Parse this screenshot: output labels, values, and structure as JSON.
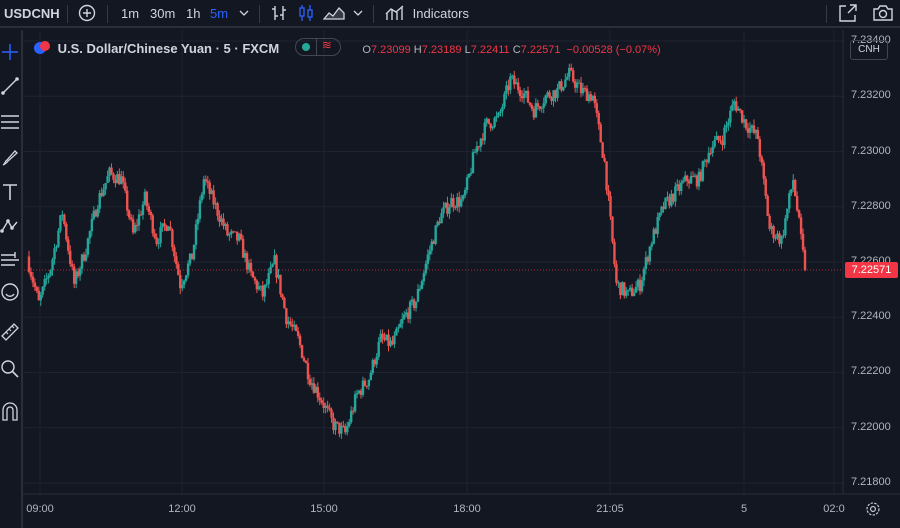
{
  "toolbar": {
    "symbol": "USDCNH",
    "intervals": [
      "1m",
      "30m",
      "1h",
      "5m"
    ],
    "indicators_label": "Indicators"
  },
  "legend": {
    "title": "U.S. Dollar/Chinese Yuan · 5 · FXCM",
    "open_label": "O",
    "open": "7.23099",
    "high_label": "H",
    "high": "7.23189",
    "low_label": "L",
    "low": "7.22411",
    "close_label": "C",
    "close": "7.22571",
    "change": "−0.00528 (−0.07%)"
  },
  "currency": "CNH",
  "last_price": "7.22571",
  "colors": {
    "up": "#26a69a",
    "down": "#ef5350",
    "background": "#131722",
    "accent": "#2962ff"
  },
  "icons": [
    "plus-circle-icon",
    "chevron-down-icon",
    "candles-icon",
    "hollow-candles-icon",
    "area-chart-icon",
    "indicators-icon",
    "fullscreen-icon",
    "camera-icon",
    "crosshair-icon",
    "trendline-icon",
    "fib-icon",
    "brush-icon",
    "text-icon",
    "pattern-icon",
    "prediction-icon",
    "emoji-icon",
    "ruler-icon",
    "zoom-icon",
    "magnet-icon",
    "settings-icon"
  ],
  "chart_data": {
    "type": "candlestick",
    "ylim": [
      7.2176,
      7.2344
    ],
    "yticks": [
      "7.23400",
      "7.23200",
      "7.23000",
      "7.22800",
      "7.22600",
      "7.22400",
      "7.22200",
      "7.22000",
      "7.21800"
    ],
    "xticks": [
      "09:00",
      "12:00",
      "15:00",
      "18:00",
      "21:05",
      "5",
      "02:0"
    ],
    "bar_interval_minutes": 5,
    "close_path": [
      7.2262,
      7.2245,
      7.2258,
      7.2278,
      7.2252,
      7.2265,
      7.2282,
      7.2292,
      7.229,
      7.227,
      7.2283,
      7.2268,
      7.2275,
      7.2252,
      7.2262,
      7.229,
      7.228,
      7.227,
      7.2268,
      7.2255,
      7.2248,
      7.226,
      7.224,
      7.2232,
      7.2218,
      7.221,
      7.2201,
      7.2198,
      7.2212,
      7.2218,
      7.2232,
      7.223,
      7.224,
      7.2246,
      7.2262,
      7.2276,
      7.2282,
      7.2282,
      7.23,
      7.231,
      7.2312,
      7.2326,
      7.2322,
      7.2315,
      7.232,
      7.2322,
      7.2328,
      7.2322,
      7.232,
      7.2296,
      7.2252,
      7.2248,
      7.2252,
      7.2268,
      7.228,
      7.2285,
      7.229,
      7.229,
      7.2302,
      7.2305,
      7.2318,
      7.231,
      7.2305,
      7.2272,
      7.2268,
      7.229,
      7.22571
    ]
  }
}
